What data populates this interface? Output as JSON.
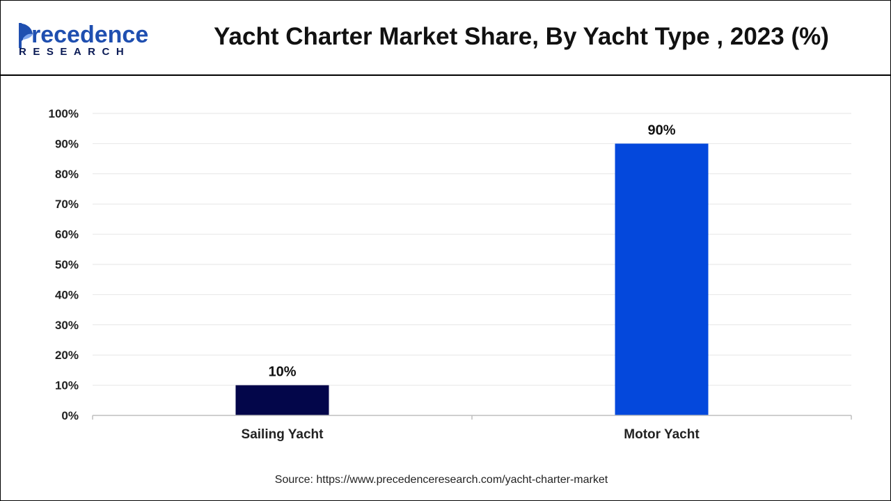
{
  "brand": {
    "name_top": "recedence",
    "name_initial": "P",
    "name_bottom": "RESEARCH",
    "logo_icon": "sail-icon",
    "colors": {
      "primary": "#1f4fb0",
      "dark": "#0a1a55"
    }
  },
  "header": {
    "title": "Yacht Charter Market Share, By Yacht Type , 2023 (%)"
  },
  "footer": {
    "source": "Source: https://www.precedenceresearch.com/yacht-charter-market"
  },
  "chart_data": {
    "type": "bar",
    "title": "Yacht Charter Market Share, By Yacht Type , 2023 (%)",
    "categories": [
      "Sailing Yacht",
      "Motor Yacht"
    ],
    "values": [
      10,
      90
    ],
    "data_labels": [
      "10%",
      "90%"
    ],
    "colors": [
      "#03064a",
      "#0448dc"
    ],
    "ylim": [
      0,
      100
    ],
    "yticks": [
      "0%",
      "10%",
      "20%",
      "30%",
      "40%",
      "50%",
      "60%",
      "70%",
      "80%",
      "90%",
      "100%"
    ],
    "xlabel": "",
    "ylabel": "",
    "grid": true,
    "legend": "none"
  }
}
